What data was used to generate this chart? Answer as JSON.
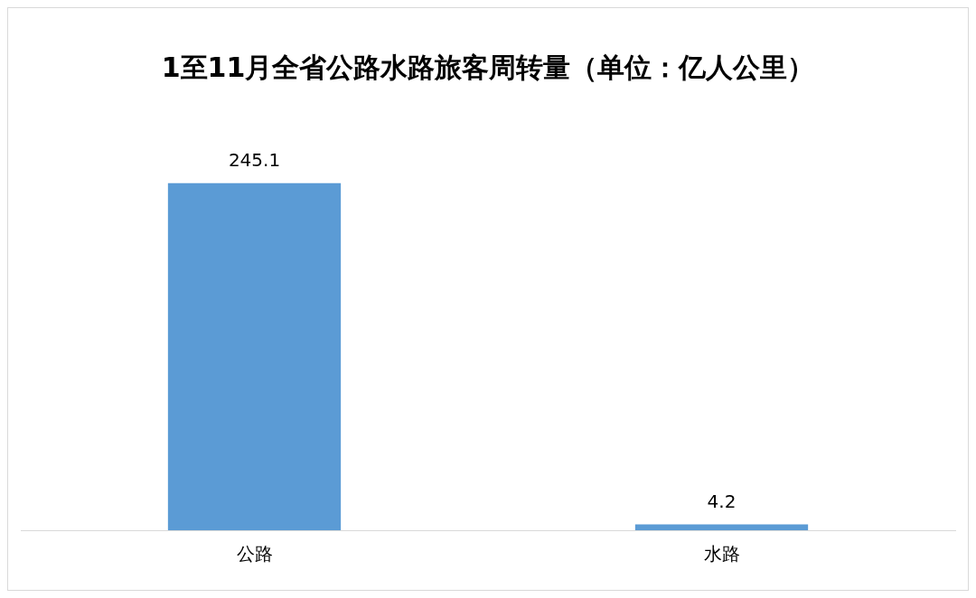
{
  "chart_data": {
    "type": "bar",
    "title": "1至11月全省公路水路旅客周转量（单位：亿人公里）",
    "categories": [
      "公路",
      "水路"
    ],
    "values": [
      245.1,
      4.2
    ],
    "color": "#5b9bd5",
    "data_labels": true,
    "grid": false,
    "legend": false
  }
}
